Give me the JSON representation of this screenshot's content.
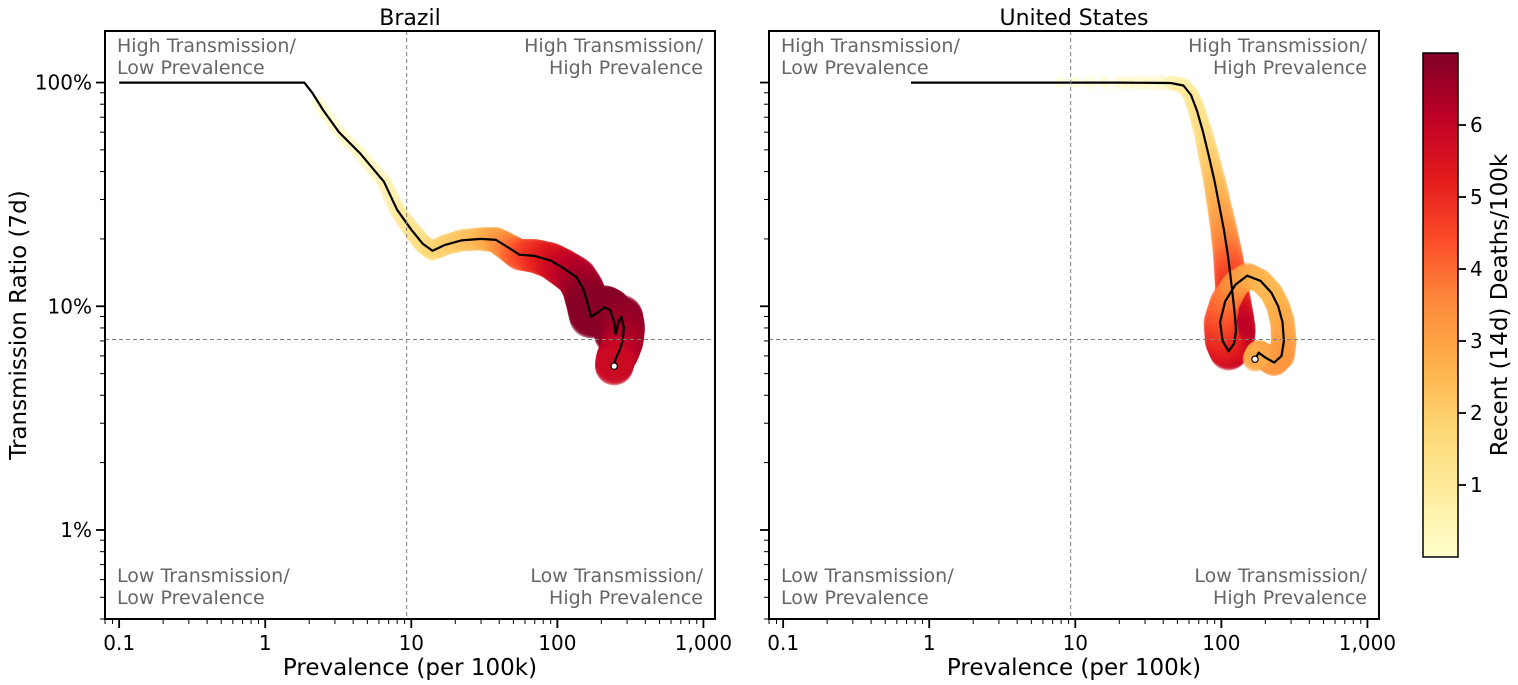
{
  "chart_data": {
    "type": "scatter",
    "ylabel": "Transmission Ratio (7d)",
    "xlabel": "Prevalence (per 100k)",
    "xscale": "log",
    "yscale": "log",
    "xlim": [
      0.08,
      1200
    ],
    "ylim": [
      0.004,
      1.7
    ],
    "xticks": [
      0.1,
      1,
      10,
      100,
      1000
    ],
    "xtick_labels": [
      "0.1",
      "1",
      "10",
      "100",
      "1,000"
    ],
    "yticks": [
      0.01,
      0.1,
      1
    ],
    "ytick_labels": [
      "1%",
      "10%",
      "100%"
    ],
    "reference_lines": {
      "x": 9.3,
      "y": 0.071
    },
    "quadrant_labels": {
      "top_left": [
        "High Transmission/",
        "Low Prevalence"
      ],
      "top_right": [
        "High Transmission/",
        "High Prevalence"
      ],
      "bottom_left": [
        "Low Transmission/",
        "Low Prevalence"
      ],
      "bottom_right": [
        "Low Transmission/",
        "High Prevalence"
      ]
    },
    "colorbar": {
      "label": "Recent (14d) Deaths/100k",
      "colormap": "YlOrRd",
      "range": [
        0,
        7
      ],
      "ticks": [
        1,
        2,
        3,
        4,
        5,
        6
      ],
      "tick_labels": [
        "1",
        "2",
        "3",
        "4",
        "5",
        "6"
      ]
    },
    "panels": [
      {
        "title": "Brazil",
        "points": [
          {
            "x": 0.1,
            "y": 1.0,
            "deaths": 0
          },
          {
            "x": 1.0,
            "y": 1.0,
            "deaths": 0
          },
          {
            "x": 1.85,
            "y": 1.0,
            "deaths": 0
          },
          {
            "x": 2.1,
            "y": 0.9,
            "deaths": 0
          },
          {
            "x": 2.5,
            "y": 0.75,
            "deaths": 0.1
          },
          {
            "x": 3.2,
            "y": 0.6,
            "deaths": 0.2
          },
          {
            "x": 4.5,
            "y": 0.48,
            "deaths": 0.4
          },
          {
            "x": 6.5,
            "y": 0.36,
            "deaths": 0.7
          },
          {
            "x": 8.0,
            "y": 0.27,
            "deaths": 1.0
          },
          {
            "x": 10.0,
            "y": 0.22,
            "deaths": 1.3
          },
          {
            "x": 12.0,
            "y": 0.19,
            "deaths": 1.5
          },
          {
            "x": 14.0,
            "y": 0.177,
            "deaths": 1.7
          },
          {
            "x": 17.0,
            "y": 0.188,
            "deaths": 1.9
          },
          {
            "x": 22.0,
            "y": 0.197,
            "deaths": 2.2
          },
          {
            "x": 30.0,
            "y": 0.2,
            "deaths": 2.5
          },
          {
            "x": 38.0,
            "y": 0.198,
            "deaths": 3.0
          },
          {
            "x": 45.0,
            "y": 0.185,
            "deaths": 3.5
          },
          {
            "x": 55.0,
            "y": 0.17,
            "deaths": 4.2
          },
          {
            "x": 70.0,
            "y": 0.168,
            "deaths": 4.8
          },
          {
            "x": 90.0,
            "y": 0.16,
            "deaths": 5.3
          },
          {
            "x": 110.0,
            "y": 0.148,
            "deaths": 5.8
          },
          {
            "x": 135.0,
            "y": 0.135,
            "deaths": 6.2
          },
          {
            "x": 150.0,
            "y": 0.12,
            "deaths": 6.5
          },
          {
            "x": 160.0,
            "y": 0.105,
            "deaths": 6.8
          },
          {
            "x": 170.0,
            "y": 0.09,
            "deaths": 6.9
          },
          {
            "x": 190.0,
            "y": 0.094,
            "deaths": 6.9
          },
          {
            "x": 210.0,
            "y": 0.099,
            "deaths": 6.9
          },
          {
            "x": 230.0,
            "y": 0.096,
            "deaths": 6.9
          },
          {
            "x": 245.0,
            "y": 0.085,
            "deaths": 6.9
          },
          {
            "x": 250.0,
            "y": 0.075,
            "deaths": 6.8
          },
          {
            "x": 262.0,
            "y": 0.085,
            "deaths": 6.8
          },
          {
            "x": 275.0,
            "y": 0.09,
            "deaths": 6.8
          },
          {
            "x": 285.0,
            "y": 0.08,
            "deaths": 6.7
          },
          {
            "x": 280.0,
            "y": 0.07,
            "deaths": 6.5
          },
          {
            "x": 265.0,
            "y": 0.063,
            "deaths": 6.3
          },
          {
            "x": 250.0,
            "y": 0.058,
            "deaths": 6.0
          },
          {
            "x": 245.0,
            "y": 0.054,
            "deaths": 5.8
          }
        ]
      },
      {
        "title": "United States",
        "points": [
          {
            "x": 0.75,
            "y": 1.0,
            "deaths": 0
          },
          {
            "x": 5.0,
            "y": 1.0,
            "deaths": 0
          },
          {
            "x": 20.0,
            "y": 1.0,
            "deaths": 0.3
          },
          {
            "x": 45.0,
            "y": 0.995,
            "deaths": 0.6
          },
          {
            "x": 55.0,
            "y": 0.97,
            "deaths": 0.8
          },
          {
            "x": 62.0,
            "y": 0.88,
            "deaths": 1.0
          },
          {
            "x": 68.0,
            "y": 0.75,
            "deaths": 1.3
          },
          {
            "x": 75.0,
            "y": 0.6,
            "deaths": 1.6
          },
          {
            "x": 82.0,
            "y": 0.47,
            "deaths": 2.0
          },
          {
            "x": 90.0,
            "y": 0.36,
            "deaths": 2.4
          },
          {
            "x": 97.0,
            "y": 0.28,
            "deaths": 2.8
          },
          {
            "x": 104.0,
            "y": 0.22,
            "deaths": 3.3
          },
          {
            "x": 110.0,
            "y": 0.175,
            "deaths": 3.8
          },
          {
            "x": 115.0,
            "y": 0.14,
            "deaths": 4.4
          },
          {
            "x": 120.0,
            "y": 0.11,
            "deaths": 5.0
          },
          {
            "x": 124.0,
            "y": 0.09,
            "deaths": 5.6
          },
          {
            "x": 126.0,
            "y": 0.078,
            "deaths": 6.0
          },
          {
            "x": 122.0,
            "y": 0.068,
            "deaths": 6.1
          },
          {
            "x": 112.0,
            "y": 0.063,
            "deaths": 5.8
          },
          {
            "x": 102.0,
            "y": 0.07,
            "deaths": 5.2
          },
          {
            "x": 98.0,
            "y": 0.085,
            "deaths": 4.6
          },
          {
            "x": 106.0,
            "y": 0.105,
            "deaths": 4.0
          },
          {
            "x": 125.0,
            "y": 0.125,
            "deaths": 3.5
          },
          {
            "x": 150.0,
            "y": 0.137,
            "deaths": 3.0
          },
          {
            "x": 185.0,
            "y": 0.13,
            "deaths": 2.6
          },
          {
            "x": 220.0,
            "y": 0.115,
            "deaths": 2.5
          },
          {
            "x": 245.0,
            "y": 0.1,
            "deaths": 2.6
          },
          {
            "x": 262.0,
            "y": 0.085,
            "deaths": 2.8
          },
          {
            "x": 268.0,
            "y": 0.07,
            "deaths": 3.0
          },
          {
            "x": 258.0,
            "y": 0.06,
            "deaths": 3.2
          },
          {
            "x": 230.0,
            "y": 0.056,
            "deaths": 3.3
          },
          {
            "x": 200.0,
            "y": 0.059,
            "deaths": 3.2
          },
          {
            "x": 180.0,
            "y": 0.062,
            "deaths": 3.0
          },
          {
            "x": 170.0,
            "y": 0.058,
            "deaths": 2.8
          }
        ]
      }
    ]
  }
}
